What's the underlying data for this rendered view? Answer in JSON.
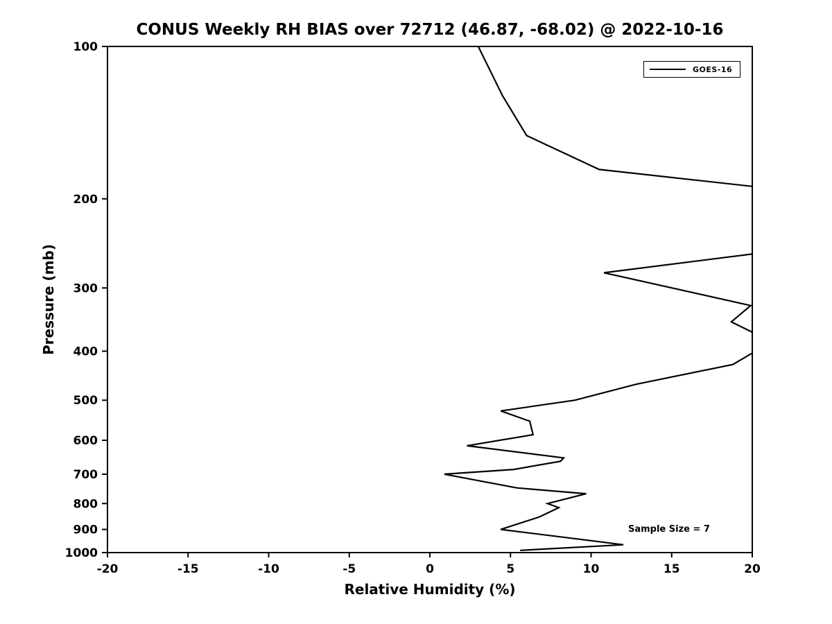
{
  "chart_data": {
    "type": "line",
    "title": "CONUS Weekly RH BIAS over 72712 (46.87, -68.02) @ 2022-10-16",
    "xlabel": "Relative Humidity (%)",
    "ylabel": "Pressure (mb)",
    "xlim": [
      -20,
      20
    ],
    "ylim": [
      100,
      1000
    ],
    "yscale": "log",
    "y_inverted": true,
    "grid": false,
    "xticks": [
      -20,
      -15,
      -10,
      -5,
      0,
      5,
      10,
      15,
      20
    ],
    "yticks": [
      100,
      200,
      300,
      400,
      500,
      600,
      700,
      800,
      900,
      1000
    ],
    "legend": {
      "position": "top-right",
      "entries": [
        {
          "label": "GOES-16",
          "color": "#000000"
        }
      ]
    },
    "annotations": [
      {
        "text": "Sample Size = 7",
        "x_rh": 12.3,
        "y_pressure_mb": 905
      }
    ],
    "series": [
      {
        "name": "GOES-16",
        "color": "#000000",
        "line_width": 2.2,
        "pressure_mb": [
          100,
          125,
          150,
          175,
          200,
          250,
          280,
          325,
          350,
          375,
          400,
          425,
          465,
          500,
          525,
          550,
          585,
          615,
          650,
          660,
          685,
          700,
          745,
          765,
          800,
          815,
          850,
          900,
          950,
          965,
          990
        ],
        "rh_bias_pct": [
          3.0,
          4.5,
          6.0,
          10.5,
          27.0,
          23.0,
          10.8,
          19.9,
          18.7,
          20.6,
          20.2,
          18.8,
          12.8,
          9.0,
          4.4,
          6.2,
          6.4,
          2.3,
          8.3,
          8.1,
          5.2,
          0.9,
          5.4,
          9.7,
          7.3,
          8.0,
          6.8,
          4.4,
          10.3,
          12.0,
          5.6
        ]
      }
    ]
  }
}
